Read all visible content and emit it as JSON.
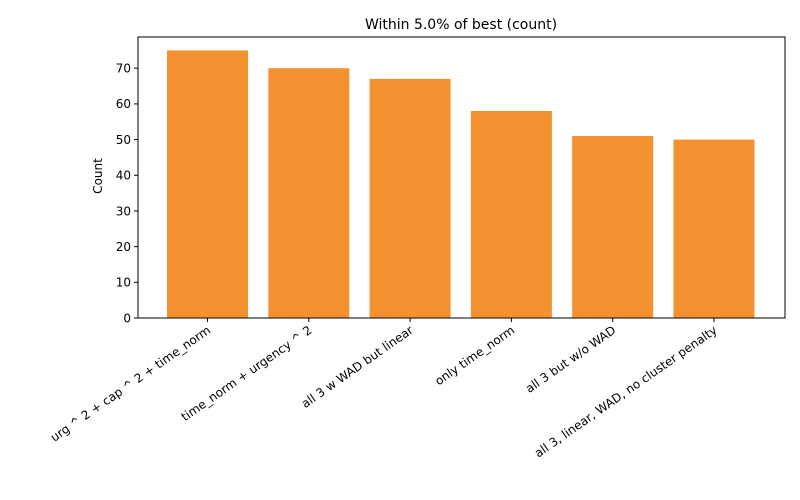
{
  "chart_data": {
    "type": "bar",
    "title": "Within 5.0% of best (count)",
    "xlabel": "",
    "ylabel": "Count",
    "categories": [
      "urg ^ 2 + cap ^ 2 + time_norm",
      "time_norm + urgency ^ 2",
      "all 3 w WAD but linear",
      "only time_norm",
      "all 3 but w/o WAD",
      "all 3, linear, WAD, no cluster penalty"
    ],
    "values": [
      75,
      70,
      67,
      58,
      51,
      50
    ],
    "ylim": [
      0,
      78.75
    ],
    "yticks": [
      0,
      10,
      20,
      30,
      40,
      50,
      60,
      70
    ],
    "bar_color": "#f39030",
    "grid": false,
    "legend": "none"
  }
}
